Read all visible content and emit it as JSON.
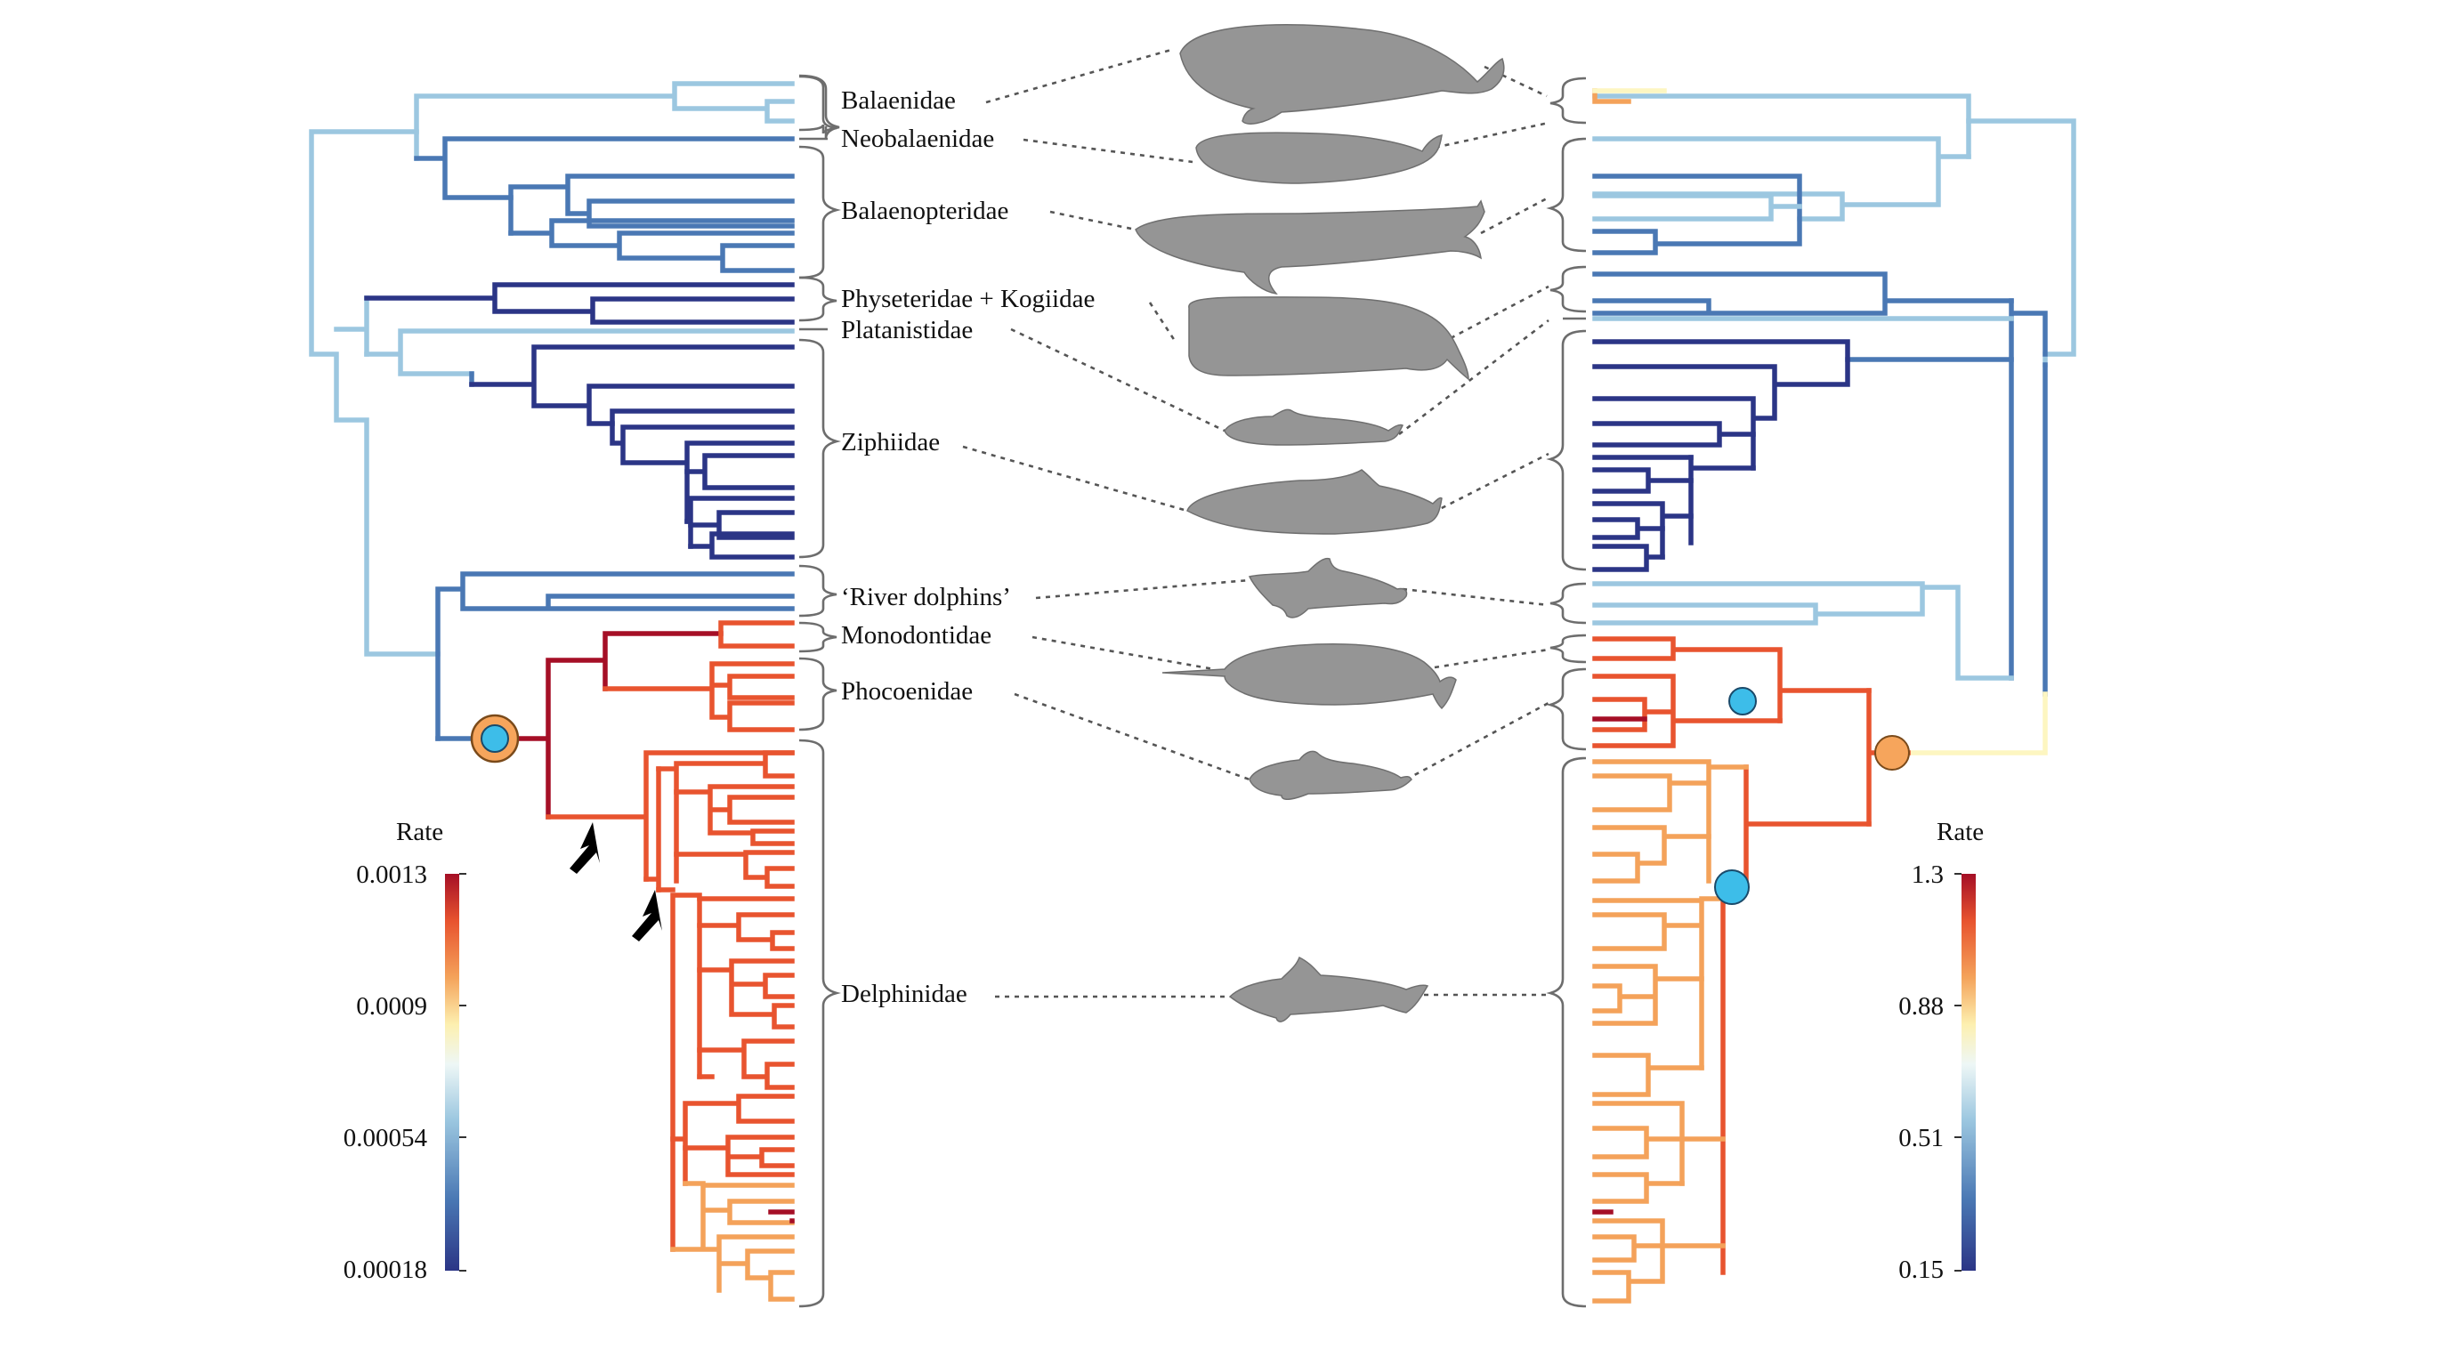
{
  "families": [
    {
      "id": "balaenidae",
      "label": "Balaenidae"
    },
    {
      "id": "neobalaenidae",
      "label": "Neobalaenidae"
    },
    {
      "id": "balaenopteridae",
      "label": "Balaenopteridae"
    },
    {
      "id": "physeteridae",
      "label": "Physeteridae + Kogiidae"
    },
    {
      "id": "platanistidae",
      "label": "Platanistidae"
    },
    {
      "id": "ziphiidae",
      "label": "Ziphiidae"
    },
    {
      "id": "river-dolphins",
      "label": "‘River dolphins’"
    },
    {
      "id": "monodontidae",
      "label": "Monodontidae"
    },
    {
      "id": "phocoenidae",
      "label": "Phocoenidae"
    },
    {
      "id": "delphinidae",
      "label": "Delphinidae"
    }
  ],
  "legend_left": {
    "title": "Rate",
    "ticks": [
      "0.0013",
      "0.0009",
      "0.00054",
      "0.00018"
    ]
  },
  "legend_right": {
    "title": "Rate",
    "ticks": [
      "1.3",
      "0.88",
      "0.51",
      "0.15"
    ]
  },
  "colors": {
    "rate_very_low": "#2b3586",
    "rate_low": "#4a78b4",
    "rate_mid_low": "#9cc7e0",
    "rate_mid": "#fdf6c1",
    "rate_mid_high": "#f4a25a",
    "rate_high": "#e8542f",
    "rate_very_high": "#a50f26",
    "shift_marker_orange": "#f6a55c",
    "shift_marker_blue": "#3dbde9",
    "silhouette": "#959595"
  },
  "icons": [
    "arrow-icon",
    "whale-silhouette-icon"
  ]
}
